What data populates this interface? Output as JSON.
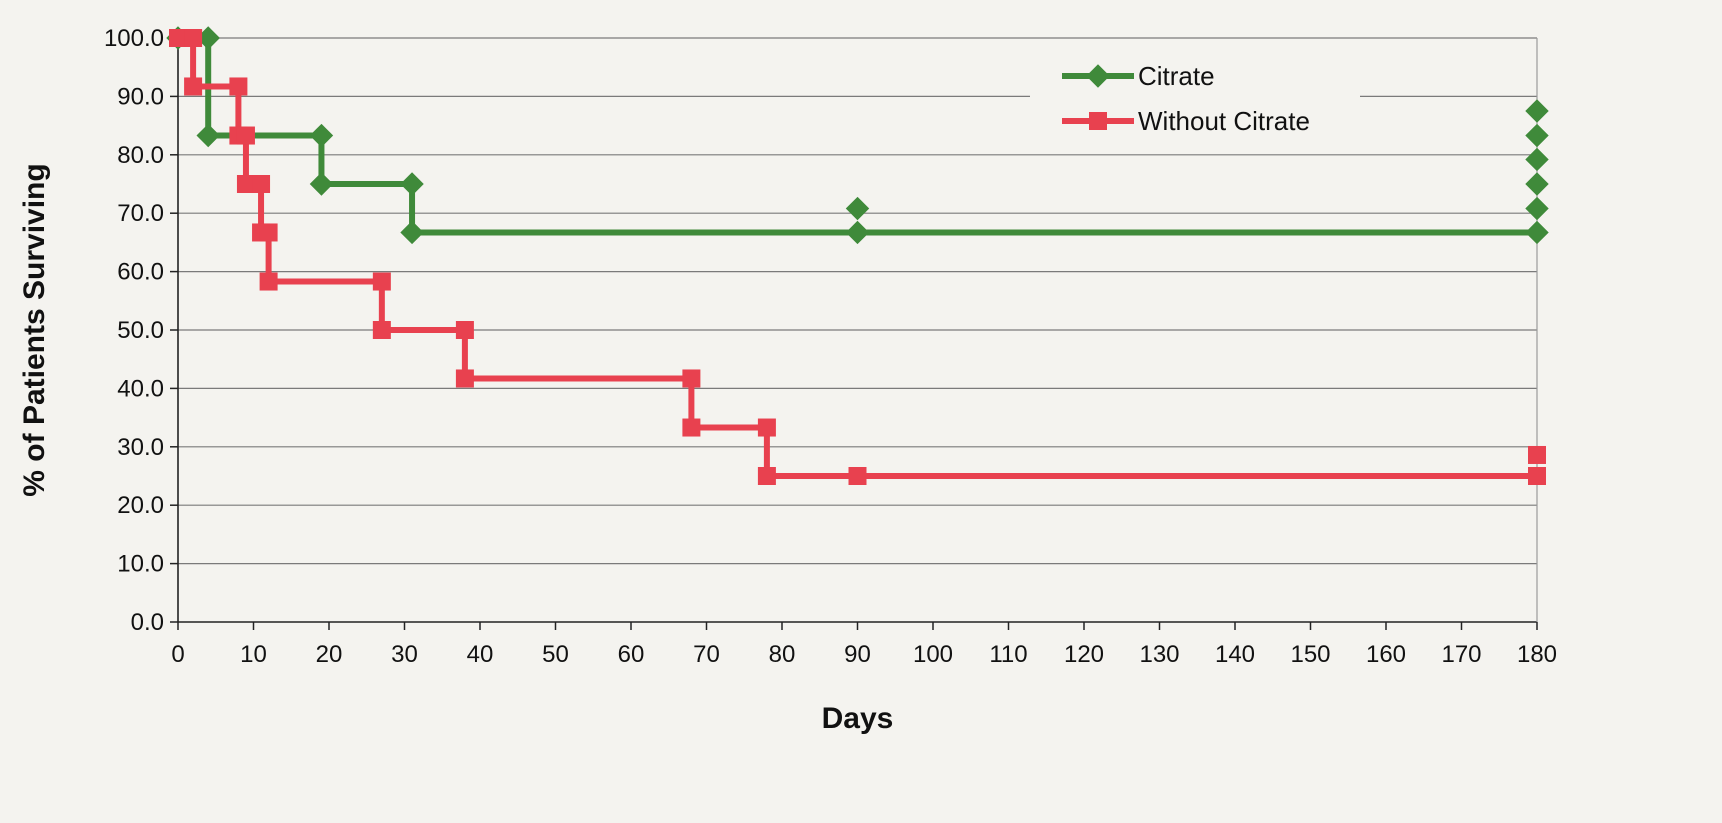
{
  "chart_data": {
    "type": "line",
    "title": "",
    "xlabel": "Days",
    "ylabel": "% of Patients Surviving",
    "xlim": [
      0,
      180
    ],
    "ylim": [
      0,
      100
    ],
    "x_ticks": [
      0,
      10,
      20,
      30,
      40,
      50,
      60,
      70,
      80,
      90,
      100,
      110,
      120,
      130,
      140,
      150,
      160,
      170,
      180
    ],
    "y_ticks": [
      "0.0",
      "10.0",
      "20.0",
      "30.0",
      "40.0",
      "50.0",
      "60.0",
      "70.0",
      "80.0",
      "90.0",
      "100.0"
    ],
    "grid": "horizontal",
    "legend_position": "top-right",
    "series": [
      {
        "name": "Citrate",
        "color": "#3f8a3a",
        "marker": "diamond",
        "points": [
          [
            0,
            100.0
          ],
          [
            4,
            100.0
          ],
          [
            4,
            83.3
          ],
          [
            19,
            83.3
          ],
          [
            19,
            75.0
          ],
          [
            31,
            75.0
          ],
          [
            31,
            66.7
          ],
          [
            90,
            66.7
          ],
          [
            180,
            66.7
          ]
        ],
        "censor_marks": [
          [
            90,
            70.8
          ],
          [
            180,
            70.8
          ],
          [
            180,
            75.0
          ],
          [
            180,
            79.2
          ],
          [
            180,
            83.3
          ],
          [
            180,
            87.5
          ]
        ]
      },
      {
        "name": "Without Citrate",
        "color": "#e8414f",
        "marker": "square",
        "points": [
          [
            0,
            100.0
          ],
          [
            2,
            100.0
          ],
          [
            2,
            91.7
          ],
          [
            8,
            91.7
          ],
          [
            8,
            83.3
          ],
          [
            9,
            83.3
          ],
          [
            9,
            75.0
          ],
          [
            11,
            75.0
          ],
          [
            11,
            66.7
          ],
          [
            12,
            66.7
          ],
          [
            12,
            58.3
          ],
          [
            27,
            58.3
          ],
          [
            27,
            50.0
          ],
          [
            38,
            50.0
          ],
          [
            38,
            41.7
          ],
          [
            68,
            41.7
          ],
          [
            68,
            33.3
          ],
          [
            78,
            33.3
          ],
          [
            78,
            25.0
          ],
          [
            90,
            25.0
          ],
          [
            180,
            25.0
          ]
        ],
        "censor_marks": [
          [
            180,
            28.6
          ]
        ]
      }
    ]
  }
}
